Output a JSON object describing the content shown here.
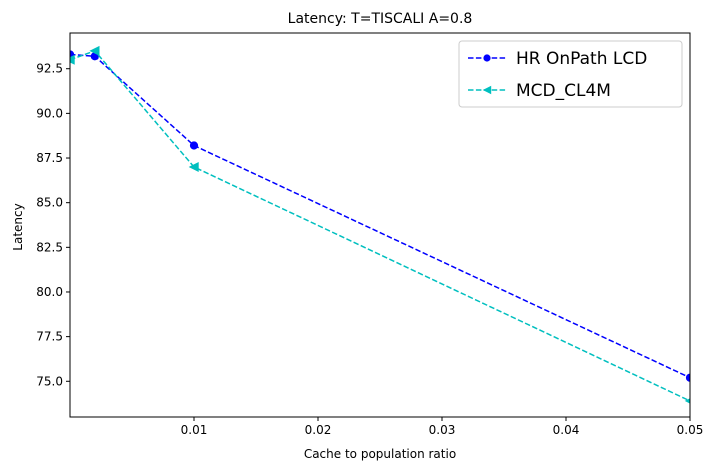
{
  "chart_data": {
    "type": "line",
    "title": "Latency: T=TISCALI A=0.8",
    "xlabel": "Cache to population ratio",
    "ylabel": "Latency",
    "xlim": [
      0.0,
      0.05
    ],
    "ylim": [
      73.0,
      94.5
    ],
    "xticks": [
      0.01,
      0.02,
      0.03,
      0.04,
      0.05
    ],
    "xtick_labels": [
      "0.01",
      "0.02",
      "0.03",
      "0.04",
      "0.05"
    ],
    "yticks": [
      75.0,
      77.5,
      80.0,
      82.5,
      85.0,
      87.5,
      90.0,
      92.5
    ],
    "ytick_labels": [
      "75.0",
      "77.5",
      "80.0",
      "82.5",
      "85.0",
      "87.5",
      "90.0",
      "92.5"
    ],
    "grid": false,
    "legend_position": "top-right",
    "series": [
      {
        "name": "HR OnPath LCD",
        "color": "#0000ff",
        "marker": "circle",
        "linestyle": "dashed",
        "points": [
          [
            0.0,
            93.3
          ],
          [
            0.002,
            93.2
          ],
          [
            0.01,
            88.2
          ],
          [
            0.05,
            75.2
          ]
        ]
      },
      {
        "name": "MCD_CL4M",
        "color": "#00bfbf",
        "marker": "triangle-left",
        "linestyle": "dashed",
        "points": [
          [
            0.0,
            93.0
          ],
          [
            0.002,
            93.5
          ],
          [
            0.01,
            87.0
          ],
          [
            0.05,
            73.9
          ]
        ]
      }
    ]
  }
}
